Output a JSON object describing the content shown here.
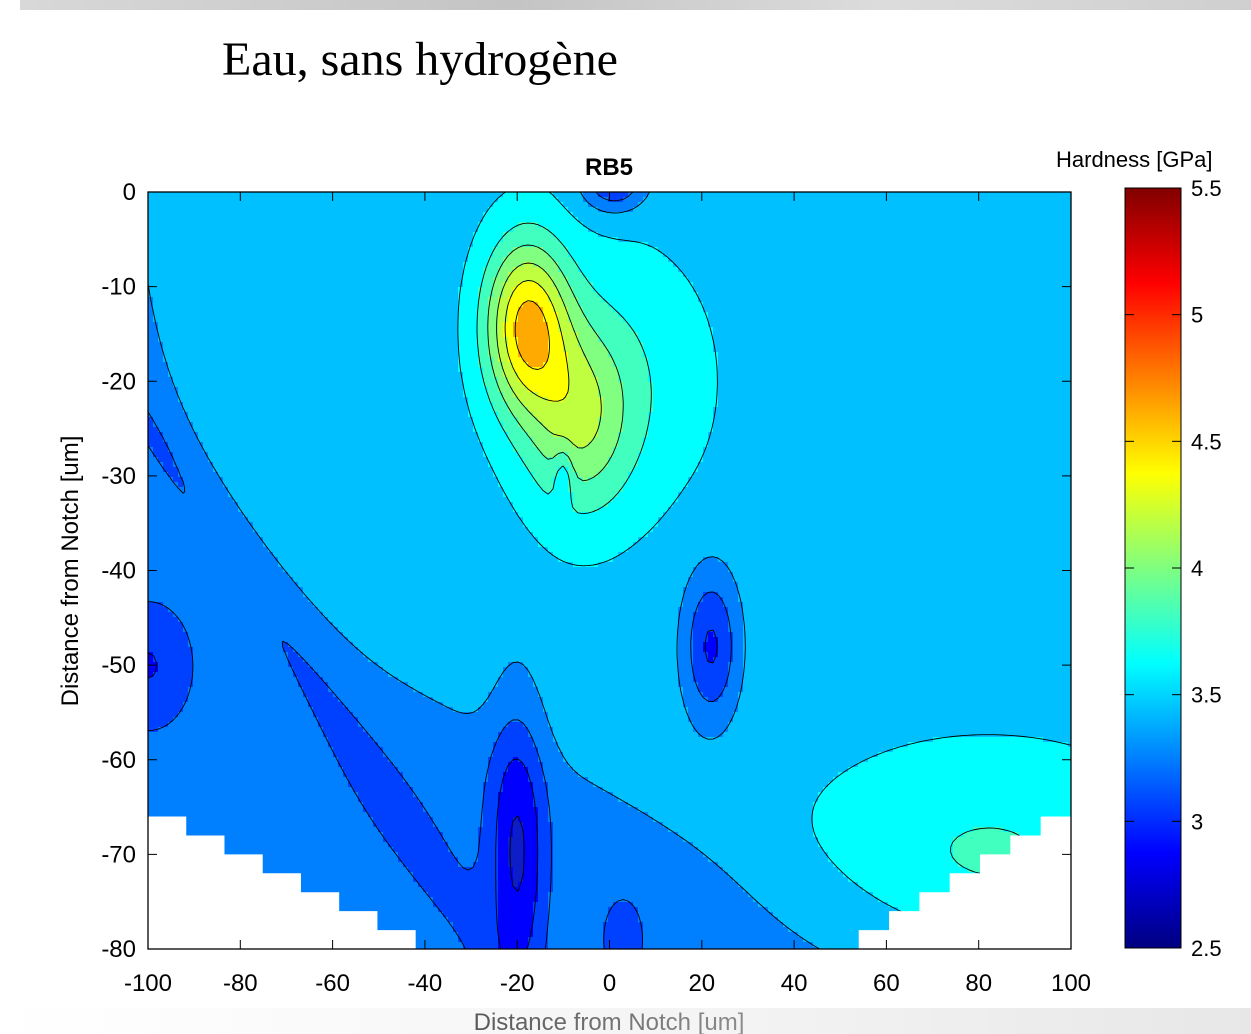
{
  "slide": {
    "title": "Eau, sans hydrogène"
  },
  "chart_data": {
    "type": "heatmap",
    "subtype": "filled-contour",
    "title": "RB5",
    "xlabel": "Distance from Notch [um]",
    "ylabel": "Distance from Notch [um]",
    "xlim": [
      -100,
      100
    ],
    "ylim": [
      -80,
      0
    ],
    "xticks": [
      -100,
      -80,
      -60,
      -40,
      -20,
      0,
      20,
      40,
      60,
      80,
      100
    ],
    "yticks": [
      0,
      -10,
      -20,
      -30,
      -40,
      -50,
      -60,
      -70,
      -80
    ],
    "colorbar": {
      "label": "Hardness [GPa]",
      "range": [
        2.5,
        5.5
      ],
      "ticks": [
        2.5,
        3,
        3.5,
        4,
        4.5,
        5,
        5.5
      ],
      "colormap": "jet"
    },
    "levels": [
      2.6,
      2.8,
      3.0,
      3.2,
      3.4,
      3.6,
      3.8,
      4.0,
      4.2,
      4.4
    ],
    "colors": {
      "below": "#0d1dc8",
      "band": [
        "#0000ff",
        "#0040ff",
        "#0080ff",
        "#00c0ff",
        "#00ffff",
        "#40ffbf",
        "#80ff80",
        "#c0ff40",
        "#ffff00",
        "#ffaa00"
      ],
      "mask": "#ffffff",
      "line": "#000000"
    }
  }
}
